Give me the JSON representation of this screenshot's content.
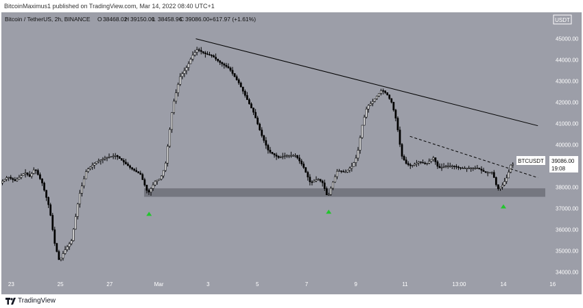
{
  "header": {
    "author_line": "BitcoinMaximus1 published on TradingView.com, Mar 14, 2022 08:40 UTC+1"
  },
  "legend": {
    "symbol": "Bitcoin / TetherUS, 2h, BINANCE",
    "open_label": "O",
    "open": "38468.02",
    "high_label": "H",
    "high": "39150.00",
    "low_label": "L",
    "low": "38458.96",
    "close_label": "C",
    "close": "39086.00",
    "change": "+617.97 (+1.61%)"
  },
  "axis": {
    "currency": "USDT",
    "y_ticks": [
      "45000.00",
      "44000.00",
      "43000.00",
      "42000.00",
      "41000.00",
      "40000.00",
      "39000.00",
      "38000.00",
      "37000.00",
      "36000.00",
      "35000.00",
      "34000.00"
    ],
    "x_ticks": [
      "23",
      "25",
      "27",
      "Mar",
      "3",
      "5",
      "7",
      "9",
      "11",
      "13:00",
      "14",
      "16"
    ]
  },
  "price_tag": {
    "symbol": "BTCUSDT",
    "price": "39086.00",
    "countdown": "19:08"
  },
  "footer": {
    "brand": "TradingView"
  },
  "colors": {
    "background": "#9c9ea8",
    "support_zone": "#6e7079",
    "candle_up": "#ffffff",
    "candle_down": "#000000",
    "signal_arrow": "#22c52d",
    "trendline": "#000000"
  },
  "chart_data": {
    "type": "candlestick",
    "title": "Bitcoin / TetherUS, 2h, BINANCE",
    "ylim": [
      33600,
      45600
    ],
    "y_unit": "USDT",
    "x_range": [
      22.6,
      44.7
    ],
    "x_ticks": [
      {
        "label": "23",
        "x": 23
      },
      {
        "label": "25",
        "x": 25
      },
      {
        "label": "27",
        "x": 27
      },
      {
        "label": "Mar",
        "x": 29
      },
      {
        "label": "3",
        "x": 31
      },
      {
        "label": "5",
        "x": 33
      },
      {
        "label": "7",
        "x": 35
      },
      {
        "label": "9",
        "x": 37
      },
      {
        "label": "11",
        "x": 39
      },
      {
        "label": "13:00",
        "x": 41.2
      },
      {
        "label": "14",
        "x": 43
      },
      {
        "label": "16",
        "x": 45
      }
    ],
    "price_path": [
      [
        22.6,
        38200
      ],
      [
        22.9,
        38500
      ],
      [
        23.2,
        38300
      ],
      [
        23.6,
        38700
      ],
      [
        23.8,
        38500
      ],
      [
        24.0,
        38900
      ],
      [
        24.3,
        38200
      ],
      [
        24.6,
        37000
      ],
      [
        24.8,
        35400
      ],
      [
        25.0,
        34500
      ],
      [
        25.2,
        35000
      ],
      [
        25.5,
        35500
      ],
      [
        25.8,
        37600
      ],
      [
        26.1,
        38800
      ],
      [
        26.5,
        39200
      ],
      [
        26.9,
        39400
      ],
      [
        27.3,
        39500
      ],
      [
        27.6,
        39200
      ],
      [
        27.9,
        38900
      ],
      [
        28.3,
        38600
      ],
      [
        28.6,
        37700
      ],
      [
        28.9,
        38300
      ],
      [
        29.1,
        38400
      ],
      [
        29.3,
        39000
      ],
      [
        29.6,
        41800
      ],
      [
        29.9,
        43200
      ],
      [
        30.2,
        43700
      ],
      [
        30.4,
        44200
      ],
      [
        30.6,
        44500
      ],
      [
        30.9,
        44300
      ],
      [
        31.2,
        44200
      ],
      [
        31.5,
        43900
      ],
      [
        31.9,
        43600
      ],
      [
        32.3,
        42900
      ],
      [
        32.6,
        42200
      ],
      [
        32.9,
        41500
      ],
      [
        33.2,
        40500
      ],
      [
        33.5,
        39700
      ],
      [
        33.9,
        39400
      ],
      [
        34.2,
        39500
      ],
      [
        34.6,
        39500
      ],
      [
        34.9,
        39000
      ],
      [
        35.2,
        38200
      ],
      [
        35.5,
        38400
      ],
      [
        35.7,
        38200
      ],
      [
        35.9,
        37500
      ],
      [
        36.1,
        38200
      ],
      [
        36.3,
        38800
      ],
      [
        36.6,
        38700
      ],
      [
        36.9,
        39000
      ],
      [
        37.1,
        39500
      ],
      [
        37.3,
        40900
      ],
      [
        37.5,
        41800
      ],
      [
        37.7,
        42000
      ],
      [
        37.9,
        42300
      ],
      [
        38.1,
        42600
      ],
      [
        38.3,
        42400
      ],
      [
        38.5,
        42000
      ],
      [
        38.7,
        41100
      ],
      [
        38.9,
        39500
      ],
      [
        39.1,
        39100
      ],
      [
        39.3,
        39000
      ],
      [
        39.6,
        39200
      ],
      [
        39.9,
        39100
      ],
      [
        40.2,
        39400
      ],
      [
        40.4,
        38900
      ],
      [
        40.7,
        39000
      ],
      [
        41.0,
        39000
      ],
      [
        41.3,
        38900
      ],
      [
        41.7,
        38900
      ],
      [
        42.0,
        38900
      ],
      [
        42.3,
        38700
      ],
      [
        42.6,
        38700
      ],
      [
        42.8,
        37900
      ],
      [
        43.0,
        38100
      ],
      [
        43.2,
        38500
      ],
      [
        43.35,
        39086
      ]
    ],
    "support_zone": {
      "from": 37550,
      "to": 37950,
      "x_start": 28.4,
      "x_end": 44.7
    },
    "annotations": [
      {
        "type": "trendline",
        "style": "solid",
        "points": [
          [
            30.5,
            45000
          ],
          [
            44.4,
            40900
          ]
        ]
      },
      {
        "type": "trendline",
        "style": "dashed",
        "points": [
          [
            39.2,
            40400
          ],
          [
            44.4,
            38450
          ]
        ]
      },
      {
        "type": "up-arrow",
        "x": 28.6,
        "y": 36750
      },
      {
        "type": "up-arrow",
        "x": 35.9,
        "y": 36850
      },
      {
        "type": "up-arrow",
        "x": 43.0,
        "y": 37100
      }
    ]
  }
}
